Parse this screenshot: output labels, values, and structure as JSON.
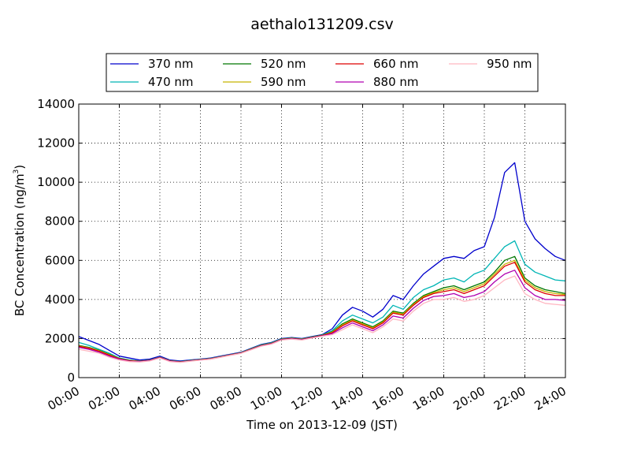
{
  "chart_data": {
    "type": "line",
    "title": "aethalo131209.csv",
    "xlabel": "Time on 2013-12-09 (JST)",
    "ylabel": "BC Concentration (ng/m",
    "ylabel_sup": "3",
    "ylabel_close": ")",
    "xlim": [
      "00:00",
      "24:00"
    ],
    "ylim": [
      0,
      14000
    ],
    "grid": true,
    "legend_position": "top",
    "x_ticks": [
      "00:00",
      "02:00",
      "04:00",
      "06:00",
      "08:00",
      "10:00",
      "12:00",
      "14:00",
      "16:00",
      "18:00",
      "20:00",
      "22:00",
      "24:00"
    ],
    "y_ticks": [
      "0",
      "2000",
      "4000",
      "6000",
      "8000",
      "10000",
      "12000",
      "14000"
    ],
    "x": [
      "00:00",
      "00:30",
      "01:00",
      "01:30",
      "02:00",
      "02:30",
      "03:00",
      "03:30",
      "04:00",
      "04:30",
      "05:00",
      "05:30",
      "06:00",
      "06:30",
      "07:00",
      "07:30",
      "08:00",
      "08:30",
      "09:00",
      "09:30",
      "10:00",
      "10:30",
      "11:00",
      "11:30",
      "12:00",
      "12:30",
      "13:00",
      "13:30",
      "14:00",
      "14:30",
      "15:00",
      "15:30",
      "16:00",
      "16:30",
      "17:00",
      "17:30",
      "18:00",
      "18:30",
      "19:00",
      "19:30",
      "20:00",
      "20:30",
      "21:00",
      "21:30",
      "22:00",
      "22:30",
      "23:00",
      "23:30",
      "24:00"
    ],
    "series": [
      {
        "name": "370 nm",
        "color": "#0000cc",
        "values": [
          2100,
          1900,
          1700,
          1400,
          1100,
          1000,
          900,
          950,
          1100,
          900,
          850,
          900,
          950,
          1000,
          1100,
          1200,
          1300,
          1500,
          1700,
          1800,
          2000,
          2050,
          2000,
          2100,
          2200,
          2500,
          3200,
          3600,
          3400,
          3100,
          3500,
          4200,
          4000,
          4700,
          5300,
          5700,
          6100,
          6200,
          6100,
          6500,
          6700,
          8200,
          10500,
          11000,
          8000,
          7100,
          6600,
          6200,
          6000
        ]
      },
      {
        "name": "470 nm",
        "color": "#00b5b5",
        "values": [
          1800,
          1650,
          1450,
          1250,
          1000,
          900,
          850,
          900,
          1050,
          870,
          820,
          880,
          930,
          980,
          1080,
          1180,
          1280,
          1480,
          1680,
          1780,
          1980,
          2030,
          1980,
          2080,
          2180,
          2400,
          2900,
          3200,
          3000,
          2800,
          3100,
          3700,
          3500,
          4100,
          4500,
          4700,
          5000,
          5100,
          4900,
          5300,
          5500,
          6100,
          6700,
          7000,
          5800,
          5400,
          5200,
          5000,
          4950
        ]
      },
      {
        "name": "520 nm",
        "color": "#007700",
        "values": [
          1650,
          1550,
          1400,
          1200,
          980,
          880,
          840,
          890,
          1040,
          860,
          810,
          870,
          920,
          970,
          1070,
          1170,
          1270,
          1470,
          1660,
          1760,
          1970,
          2020,
          1970,
          2070,
          2170,
          2350,
          2750,
          3000,
          2800,
          2600,
          2900,
          3400,
          3300,
          3800,
          4200,
          4400,
          4600,
          4700,
          4500,
          4700,
          4900,
          5400,
          6000,
          6200,
          5100,
          4700,
          4500,
          4400,
          4300
        ]
      },
      {
        "name": "590 nm",
        "color": "#c8b400",
        "values": [
          1620,
          1520,
          1380,
          1180,
          970,
          870,
          835,
          885,
          1035,
          855,
          805,
          865,
          915,
          965,
          1065,
          1165,
          1265,
          1460,
          1650,
          1750,
          1960,
          2010,
          1960,
          2060,
          2160,
          2330,
          2700,
          2950,
          2750,
          2550,
          2850,
          3350,
          3250,
          3750,
          4150,
          4350,
          4500,
          4600,
          4400,
          4600,
          4800,
          5300,
          5800,
          6000,
          5000,
          4600,
          4400,
          4300,
          4250
        ]
      },
      {
        "name": "660 nm",
        "color": "#dd0000",
        "values": [
          1600,
          1500,
          1350,
          1150,
          960,
          860,
          830,
          880,
          1030,
          850,
          800,
          860,
          910,
          960,
          1060,
          1160,
          1260,
          1450,
          1640,
          1740,
          1950,
          2000,
          1950,
          2050,
          2150,
          2300,
          2650,
          2900,
          2700,
          2500,
          2800,
          3300,
          3200,
          3700,
          4100,
          4300,
          4400,
          4500,
          4300,
          4500,
          4700,
          5200,
          5700,
          5900,
          4900,
          4500,
          4300,
          4200,
          4200
        ]
      },
      {
        "name": "880 nm",
        "color": "#b000b0",
        "values": [
          1550,
          1450,
          1300,
          1100,
          940,
          840,
          820,
          870,
          1020,
          840,
          790,
          850,
          900,
          950,
          1050,
          1150,
          1250,
          1440,
          1630,
          1730,
          1940,
          1990,
          1940,
          2040,
          2140,
          2250,
          2550,
          2800,
          2600,
          2400,
          2700,
          3150,
          3050,
          3550,
          3950,
          4150,
          4200,
          4300,
          4100,
          4200,
          4400,
          4900,
          5300,
          5500,
          4600,
          4200,
          4000,
          4000,
          3950
        ]
      },
      {
        "name": "950 nm",
        "color": "#ffb6c1",
        "values": [
          1450,
          1350,
          1250,
          1050,
          900,
          820,
          800,
          850,
          1000,
          820,
          780,
          840,
          890,
          940,
          1040,
          1140,
          1240,
          1420,
          1610,
          1710,
          1920,
          1970,
          1920,
          2020,
          2120,
          2200,
          2450,
          2700,
          2500,
          2300,
          2600,
          3000,
          2900,
          3400,
          3800,
          4000,
          4000,
          4100,
          3900,
          4000,
          4200,
          4600,
          5000,
          5200,
          4300,
          4000,
          3800,
          3750,
          3700
        ]
      }
    ]
  }
}
